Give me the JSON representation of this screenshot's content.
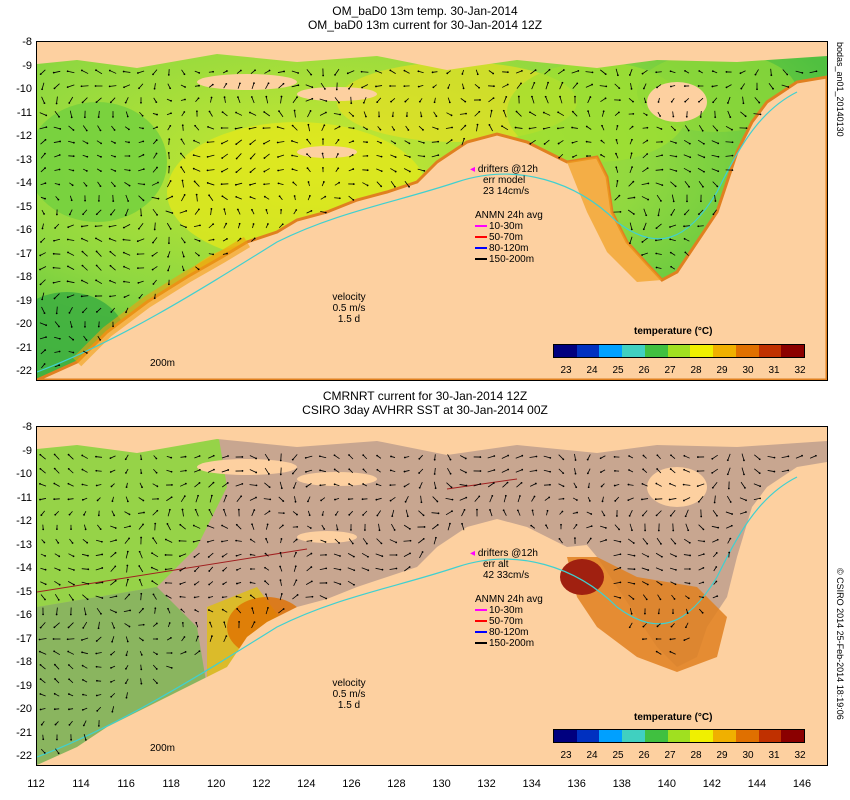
{
  "top": {
    "title1": "OM_baD0 13m temp. 30-Jan-2014",
    "title2": "OM_baD0 13m current for 30-Jan-2014 12Z",
    "side_label": "bodas_an01_20140130",
    "drifters_label": "drifters @12h",
    "err_label": "err model",
    "err_value": "23 14cm/s",
    "anmn_label": "ANMN 24h avg",
    "depths": [
      "10-30m",
      "50-70m",
      "80-120m",
      "150-200m"
    ],
    "velocity_label": "velocity",
    "velocity_value": "0.5 m/s",
    "velocity_time": "1.5 d",
    "scale_label": "200m",
    "cb_title": "temperature (°C)"
  },
  "bottom": {
    "title1": "CMRNRT current for 30-Jan-2014 12Z",
    "title2": "CSIRO 3day AVHRR SST at 30-Jan-2014 00Z",
    "side_label": "© CSIRO 2014  25-Feb-2014 18:19:06",
    "drifters_label": "drifters @12h",
    "err_label": "err alt",
    "err_value": "42 33cm/s",
    "anmn_label": "ANMN 24h avg",
    "depths": [
      "10-30m",
      "50-70m",
      "80-120m",
      "150-200m"
    ],
    "velocity_label": "velocity",
    "velocity_value": "0.5 m/s",
    "velocity_time": "1.5 d",
    "scale_label": "200m",
    "cb_title": "temperature (°C)"
  },
  "yticks": [
    "-8",
    "-9",
    "-10",
    "-11",
    "-12",
    "-13",
    "-14",
    "-15",
    "-16",
    "-17",
    "-18",
    "-19",
    "-20",
    "-21",
    "-22"
  ],
  "xticks": [
    "112",
    "114",
    "116",
    "118",
    "120",
    "122",
    "124",
    "126",
    "128",
    "130",
    "132",
    "134",
    "136",
    "138",
    "140",
    "142",
    "144",
    "146"
  ],
  "cb_ticks": [
    "23",
    "24",
    "25",
    "26",
    "27",
    "28",
    "29",
    "30",
    "31",
    "32"
  ],
  "colors": {
    "land": "#fdd0a0",
    "missing": "#c8a690",
    "depth_colors": [
      "#ff00ff",
      "#ff0000",
      "#0000ff",
      "#000000"
    ],
    "colormap": [
      "#00007f",
      "#0030c0",
      "#00a0ff",
      "#40d0c0",
      "#40c040",
      "#a0e020",
      "#f0f000",
      "#f0b000",
      "#e07000",
      "#c03000",
      "#8b0000"
    ]
  }
}
